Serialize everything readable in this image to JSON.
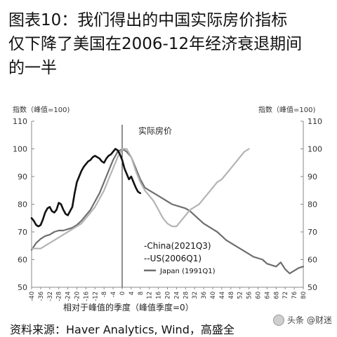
{
  "header": {
    "title_lines": [
      "图表10：我们得出的中国实际房价指标",
      "仅下降了美国在2006-12年经济衰退期间",
      "的一半"
    ]
  },
  "footer": {
    "source_text": "资料来源：Haver Analytics, Wind，高盛全",
    "watermark": "头条 @财迷"
  },
  "chart_data": {
    "type": "line",
    "title": "实际房价",
    "xlabel": "相对于峰值的季度（峰值季度=0）",
    "ylabel_left": "指数（峰值=100)",
    "ylabel_right": "指数（峰值=100)",
    "ylim": [
      50,
      110
    ],
    "yticks": [
      50,
      60,
      70,
      80,
      90,
      100,
      110
    ],
    "xlim": [
      -40,
      80
    ],
    "xticks": [
      -40,
      -36,
      -32,
      -28,
      -24,
      -20,
      -16,
      -12,
      -8,
      -4,
      0,
      4,
      8,
      12,
      16,
      20,
      24,
      28,
      32,
      36,
      40,
      44,
      48,
      52,
      56,
      60,
      64,
      68,
      72,
      76,
      80
    ],
    "grid": false,
    "legend": "center",
    "series": [
      {
        "name": "China(2021Q3)",
        "style": "black-thick",
        "color": "#111111",
        "x": [
          -40,
          -39,
          -38,
          -37,
          -36,
          -35,
          -34,
          -33,
          -32,
          -31,
          -30,
          -29,
          -28,
          -27,
          -26,
          -25,
          -24,
          -23,
          -22,
          -21,
          -20,
          -19,
          -18,
          -17,
          -16,
          -15,
          -14,
          -13,
          -12,
          -11,
          -10,
          -9,
          -8,
          -7,
          -6,
          -5,
          -4,
          -3,
          -2,
          -1,
          0,
          1,
          2,
          3,
          4,
          5,
          6,
          7,
          8
        ],
        "y": [
          75,
          74,
          72.5,
          72,
          72.5,
          74.5,
          77,
          78.5,
          79,
          77.5,
          77,
          78,
          80.5,
          80,
          78,
          76.5,
          76,
          77.5,
          79,
          84,
          88,
          90,
          92,
          93.5,
          94.5,
          95.5,
          96,
          97,
          97.5,
          97,
          96.5,
          95.5,
          95,
          96.5,
          97.5,
          98,
          99,
          100,
          99.5,
          98,
          96,
          93,
          91,
          89,
          90,
          88,
          86,
          84.5,
          84
        ]
      },
      {
        "name": "US(2006Q1)",
        "style": "light-gray",
        "color": "#b4b4b4",
        "x": [
          -40,
          -38,
          -36,
          -34,
          -32,
          -30,
          -28,
          -26,
          -24,
          -22,
          -20,
          -18,
          -16,
          -14,
          -12,
          -10,
          -8,
          -6,
          -4,
          -2,
          0,
          2,
          4,
          6,
          8,
          10,
          12,
          14,
          16,
          18,
          20,
          22,
          24,
          26,
          28,
          30,
          32,
          34,
          36,
          38,
          40,
          42,
          44,
          46,
          48,
          50,
          52,
          54,
          56
        ],
        "y": [
          64,
          64,
          64,
          65,
          66,
          67,
          68,
          69,
          70,
          71,
          72,
          73,
          75,
          77,
          79,
          82,
          85,
          89,
          93,
          97,
          100,
          100,
          97,
          92,
          88,
          85,
          83,
          81,
          78,
          75,
          73,
          72,
          72,
          74,
          76,
          78,
          79,
          80,
          82,
          84,
          86,
          88,
          89,
          91,
          93,
          95,
          97,
          99,
          100
        ]
      },
      {
        "name": "Japan (1991Q1)",
        "style": "dark-gray",
        "color": "#6e6e6e",
        "x": [
          -40,
          -38,
          -36,
          -34,
          -32,
          -30,
          -28,
          -26,
          -24,
          -22,
          -20,
          -18,
          -16,
          -14,
          -12,
          -10,
          -8,
          -6,
          -4,
          -2,
          0,
          2,
          4,
          6,
          8,
          10,
          12,
          14,
          16,
          18,
          20,
          22,
          24,
          26,
          28,
          30,
          32,
          34,
          36,
          38,
          40,
          42,
          44,
          46,
          48,
          50,
          52,
          54,
          56,
          58,
          60,
          62,
          64,
          66,
          68,
          70,
          72,
          74,
          76,
          78,
          80
        ],
        "y": [
          63.5,
          66,
          67.5,
          68.5,
          69,
          70,
          70.5,
          70.5,
          71,
          71.5,
          72.5,
          74,
          76,
          78,
          81,
          84,
          88,
          92,
          96,
          99,
          100,
          99,
          97,
          93,
          89,
          86,
          85,
          84,
          83,
          82,
          81,
          80,
          79.5,
          79,
          78.5,
          77.5,
          76,
          74.5,
          73,
          72,
          71,
          70,
          68.5,
          67,
          66,
          65,
          64,
          63,
          62,
          61,
          60.5,
          60,
          58.5,
          58,
          57.5,
          59,
          56.5,
          55,
          56,
          57,
          57.5
        ]
      }
    ]
  }
}
